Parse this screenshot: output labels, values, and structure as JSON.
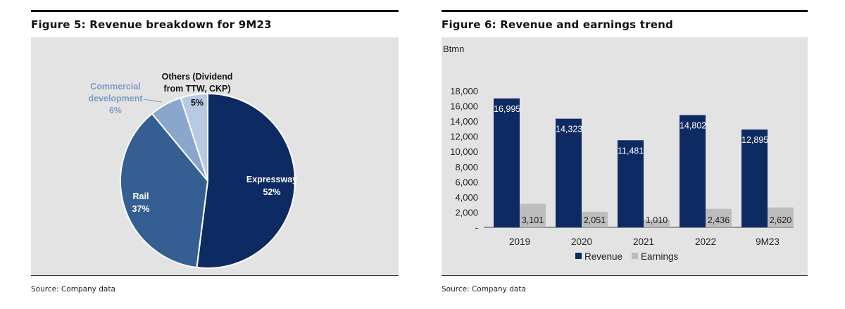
{
  "figures": [
    {
      "title": "Figure 5: Revenue breakdown for 9M23",
      "source": "Source: Company data"
    },
    {
      "title": "Figure 6: Revenue and earnings trend",
      "source": "Source: Company data"
    }
  ],
  "chart_data": [
    {
      "type": "pie",
      "title": "Figure 5: Revenue breakdown for 9M23",
      "slices": [
        {
          "name": "Expressway",
          "value": 52,
          "label": "52%",
          "color": "#0e2a63"
        },
        {
          "name": "Rail",
          "value": 37,
          "label": "37%",
          "color": "#355f93"
        },
        {
          "name": "Commercial development",
          "label_lines": [
            "Commercial",
            "development"
          ],
          "value": 6,
          "label": "6%",
          "color": "#8aa6cc"
        },
        {
          "name": "Others (Dividend from TTW, CKP)",
          "label_lines": [
            "Others (Dividend",
            "from TTW, CKP)"
          ],
          "value": 5,
          "label": "5%",
          "color": "#b8c9e2"
        }
      ]
    },
    {
      "type": "bar",
      "title": "Figure 6: Revenue and earnings trend",
      "ylabel": "Btmn",
      "ylim": [
        0,
        18000
      ],
      "yticks": [
        "-",
        "2,000",
        "4,000",
        "6,000",
        "8,000",
        "10,000",
        "12,000",
        "14,000",
        "16,000",
        "18,000"
      ],
      "categories": [
        "2019",
        "2020",
        "2021",
        "2022",
        "9M23"
      ],
      "series": [
        {
          "name": "Revenue",
          "color": "#0e2a63",
          "values": [
            16995,
            14323,
            11481,
            14802,
            12895
          ],
          "labels": [
            "16,995",
            "14,323",
            "11,481",
            "14,802",
            "12,895"
          ]
        },
        {
          "name": "Earnings",
          "color": "#bdbdbd",
          "values": [
            3101,
            2051,
            1010,
            2436,
            2620
          ],
          "labels": [
            "3,101",
            "2,051",
            "1,010",
            "2,436",
            "2,620"
          ]
        }
      ],
      "legend": "bottom"
    }
  ]
}
